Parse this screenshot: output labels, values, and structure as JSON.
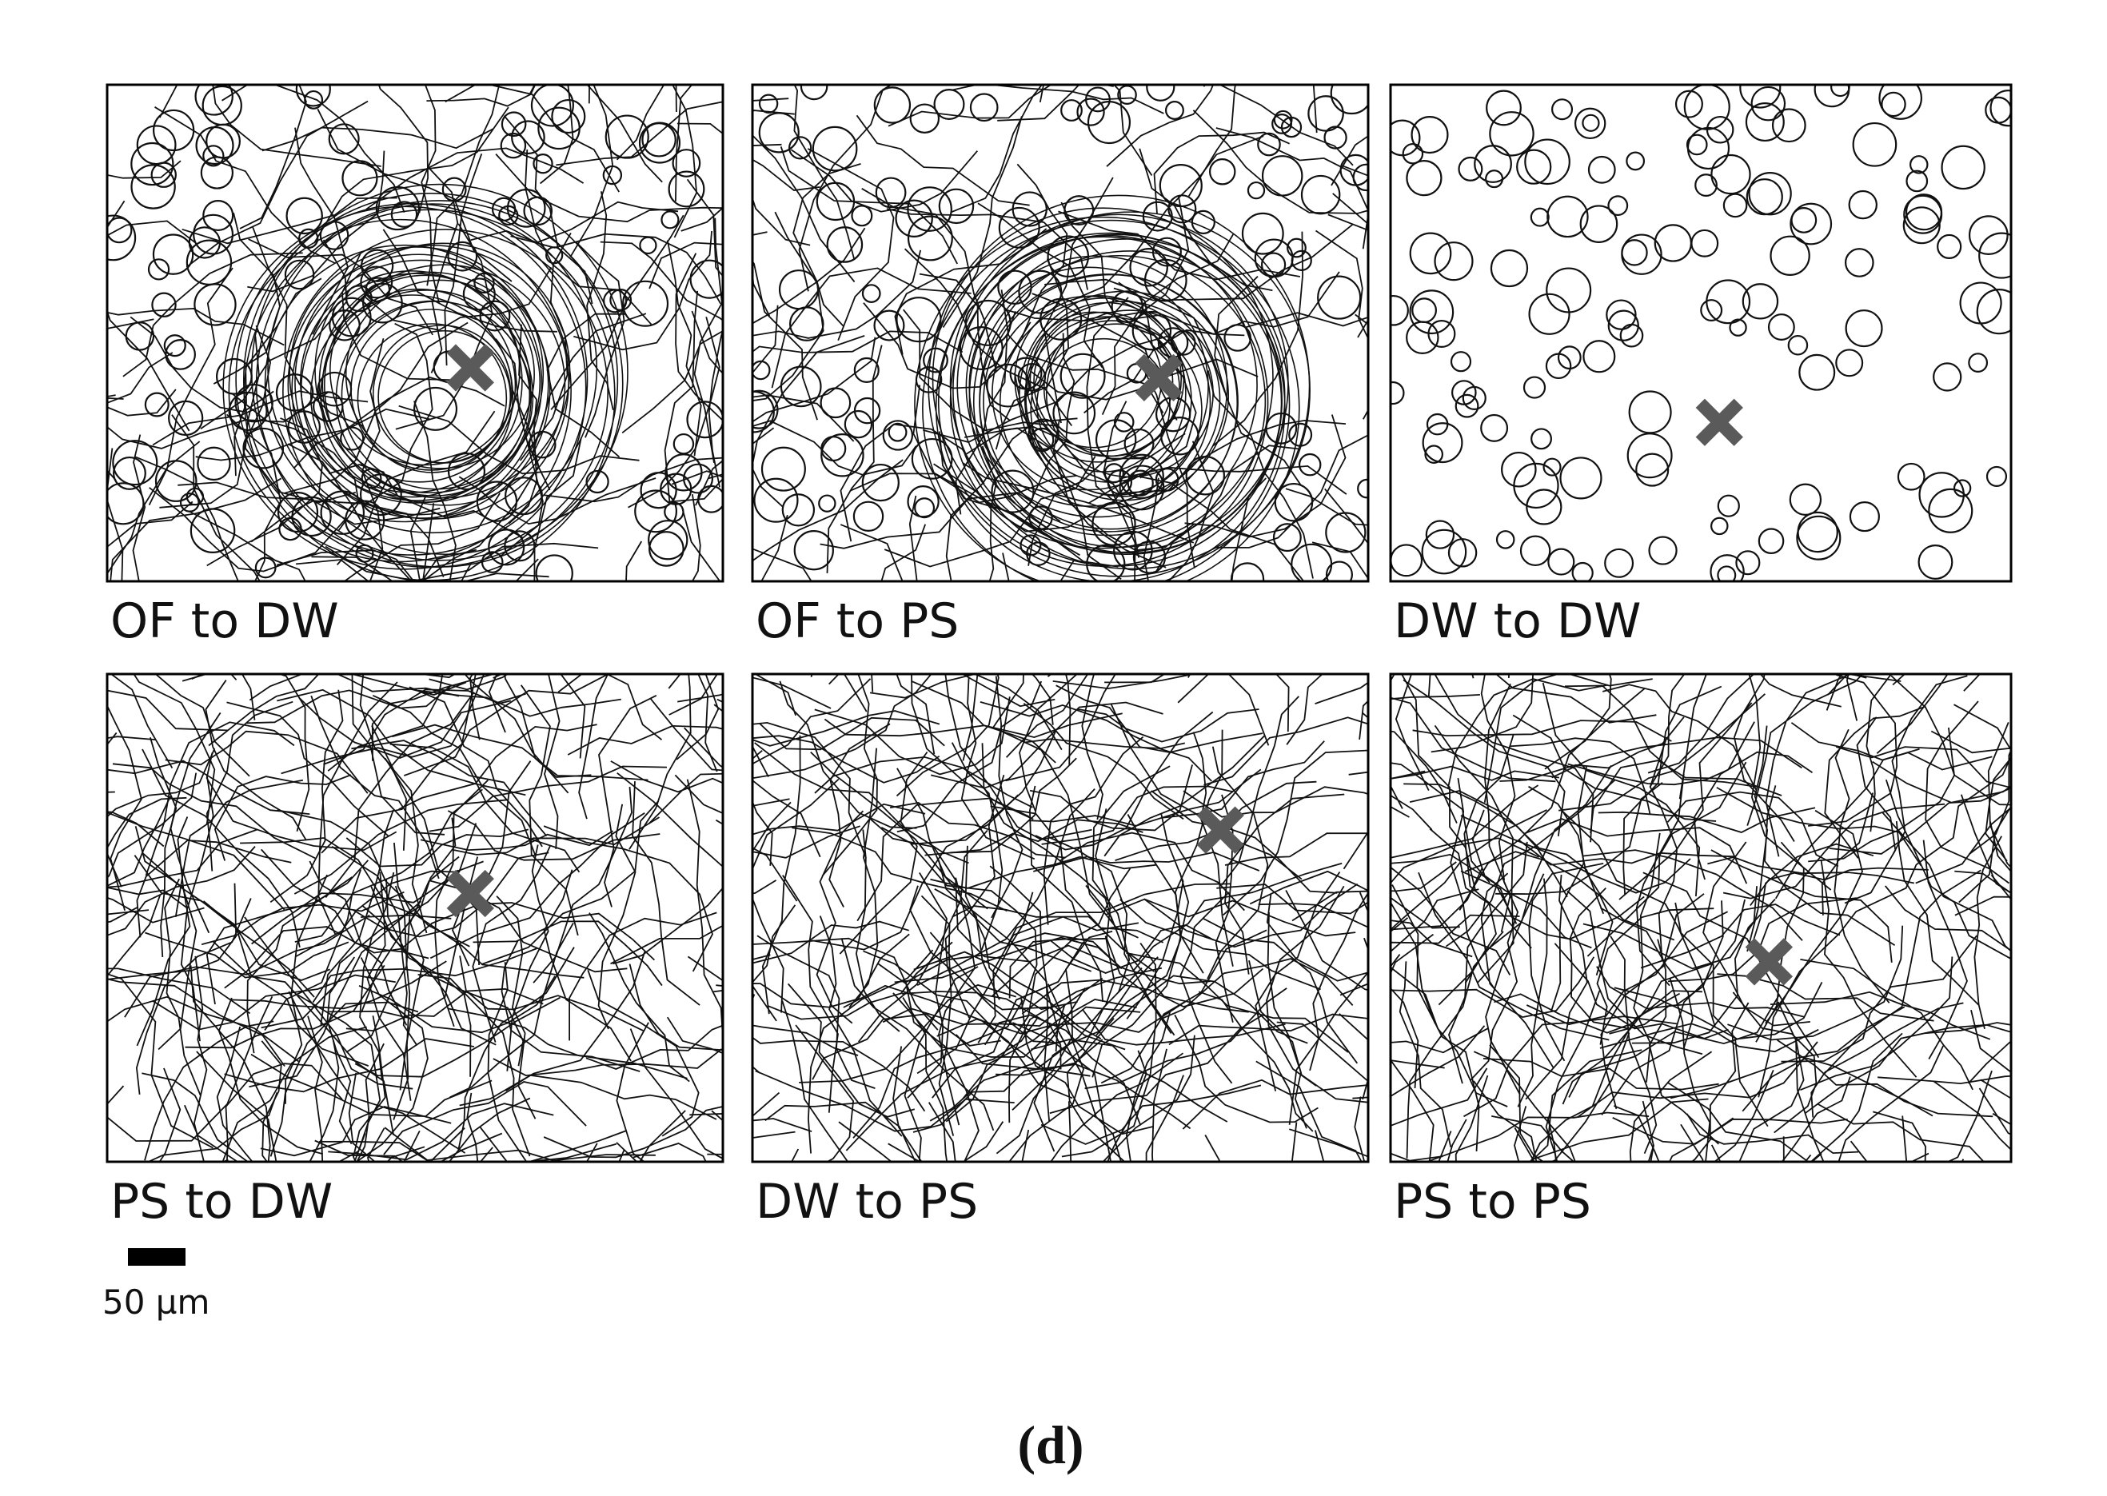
{
  "panels": [
    {
      "label": "OF to DW"
    },
    {
      "label": "OF to PS"
    },
    {
      "label": "DW to DW"
    },
    {
      "label": "PS to DW"
    },
    {
      "label": "DW to PS"
    },
    {
      "label": "PS to PS"
    }
  ],
  "scale_bar": {
    "label": "50 µm"
  },
  "caption": "(d)"
}
